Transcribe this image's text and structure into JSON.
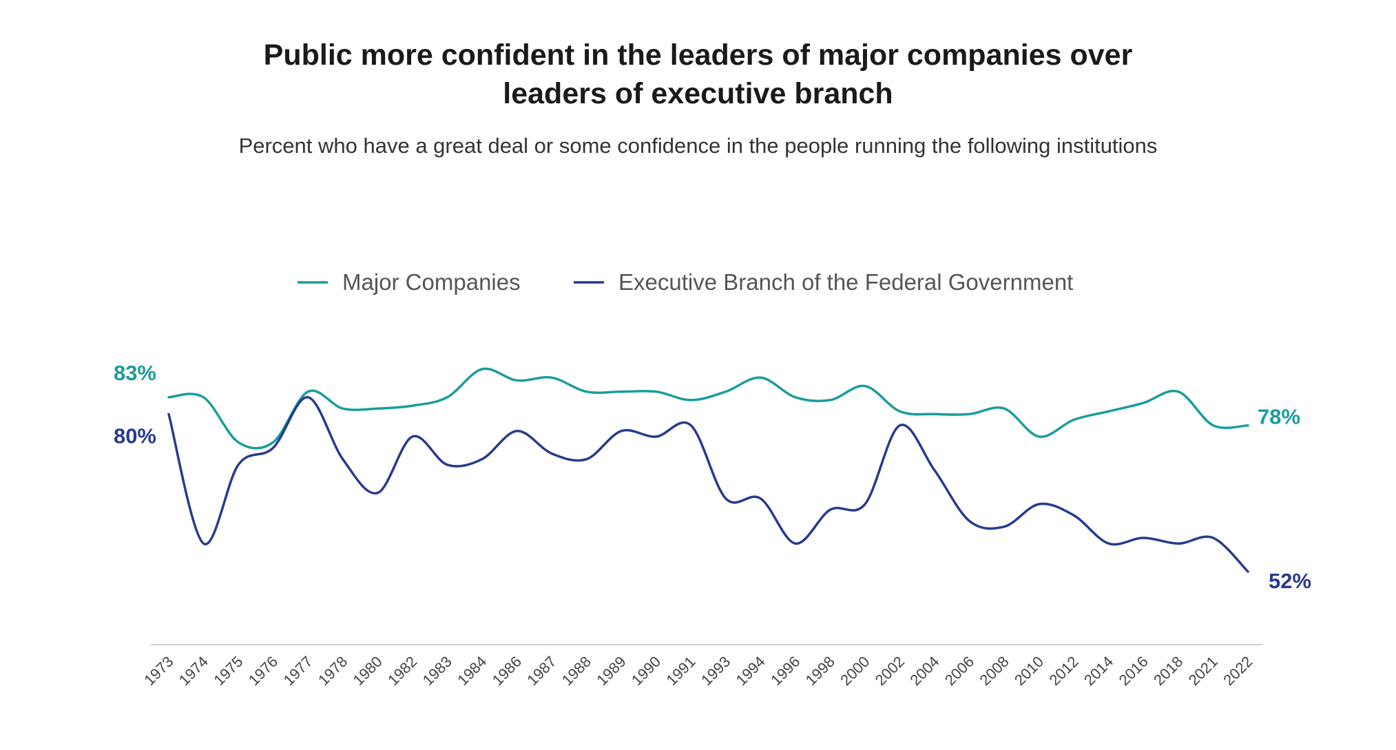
{
  "title_line1": "Public more confident in the leaders of major companies over",
  "title_line2": "leaders of executive branch",
  "subtitle": "Percent who have a great deal or some confidence in the people running the following institutions",
  "chart_data": {
    "type": "line",
    "title": "Public more confident in the leaders of major companies over leaders of executive branch",
    "subtitle": "Percent who have a great deal or some confidence in the people running the following institutions",
    "xlabel": "",
    "ylabel": "",
    "ylim": [
      40,
      90
    ],
    "grid": false,
    "legend_position": "top-center",
    "categories": [
      "1973",
      "1974",
      "1975",
      "1976",
      "1977",
      "1978",
      "1980",
      "1982",
      "1983",
      "1984",
      "1986",
      "1987",
      "1988",
      "1989",
      "1990",
      "1991",
      "1993",
      "1994",
      "1996",
      "1998",
      "2000",
      "2002",
      "2004",
      "2006",
      "2008",
      "2010",
      "2012",
      "2014",
      "2016",
      "2018",
      "2021",
      "2022"
    ],
    "series": [
      {
        "name": "Major Companies",
        "color": "#1a9c9c",
        "values": [
          83,
          83,
          75,
          75,
          84,
          81,
          81,
          81.5,
          83,
          88,
          86,
          86.5,
          84,
          84,
          84,
          82.5,
          84,
          86.5,
          83,
          82.5,
          85,
          80.5,
          80,
          80,
          81,
          76,
          79,
          80.5,
          82,
          84,
          78,
          78
        ],
        "start_label": "83%",
        "end_label": "78%"
      },
      {
        "name": "Executive Branch of the Federal Government",
        "color": "#283a8e",
        "values": [
          80,
          57,
          71,
          74,
          83,
          72,
          66,
          76,
          71,
          72,
          77,
          73,
          72,
          77,
          76,
          78,
          65,
          65,
          57,
          63,
          64,
          78,
          70,
          61,
          60,
          64,
          62,
          57,
          58,
          57,
          58,
          52
        ],
        "start_label": "80%",
        "end_label": "52%"
      }
    ]
  }
}
